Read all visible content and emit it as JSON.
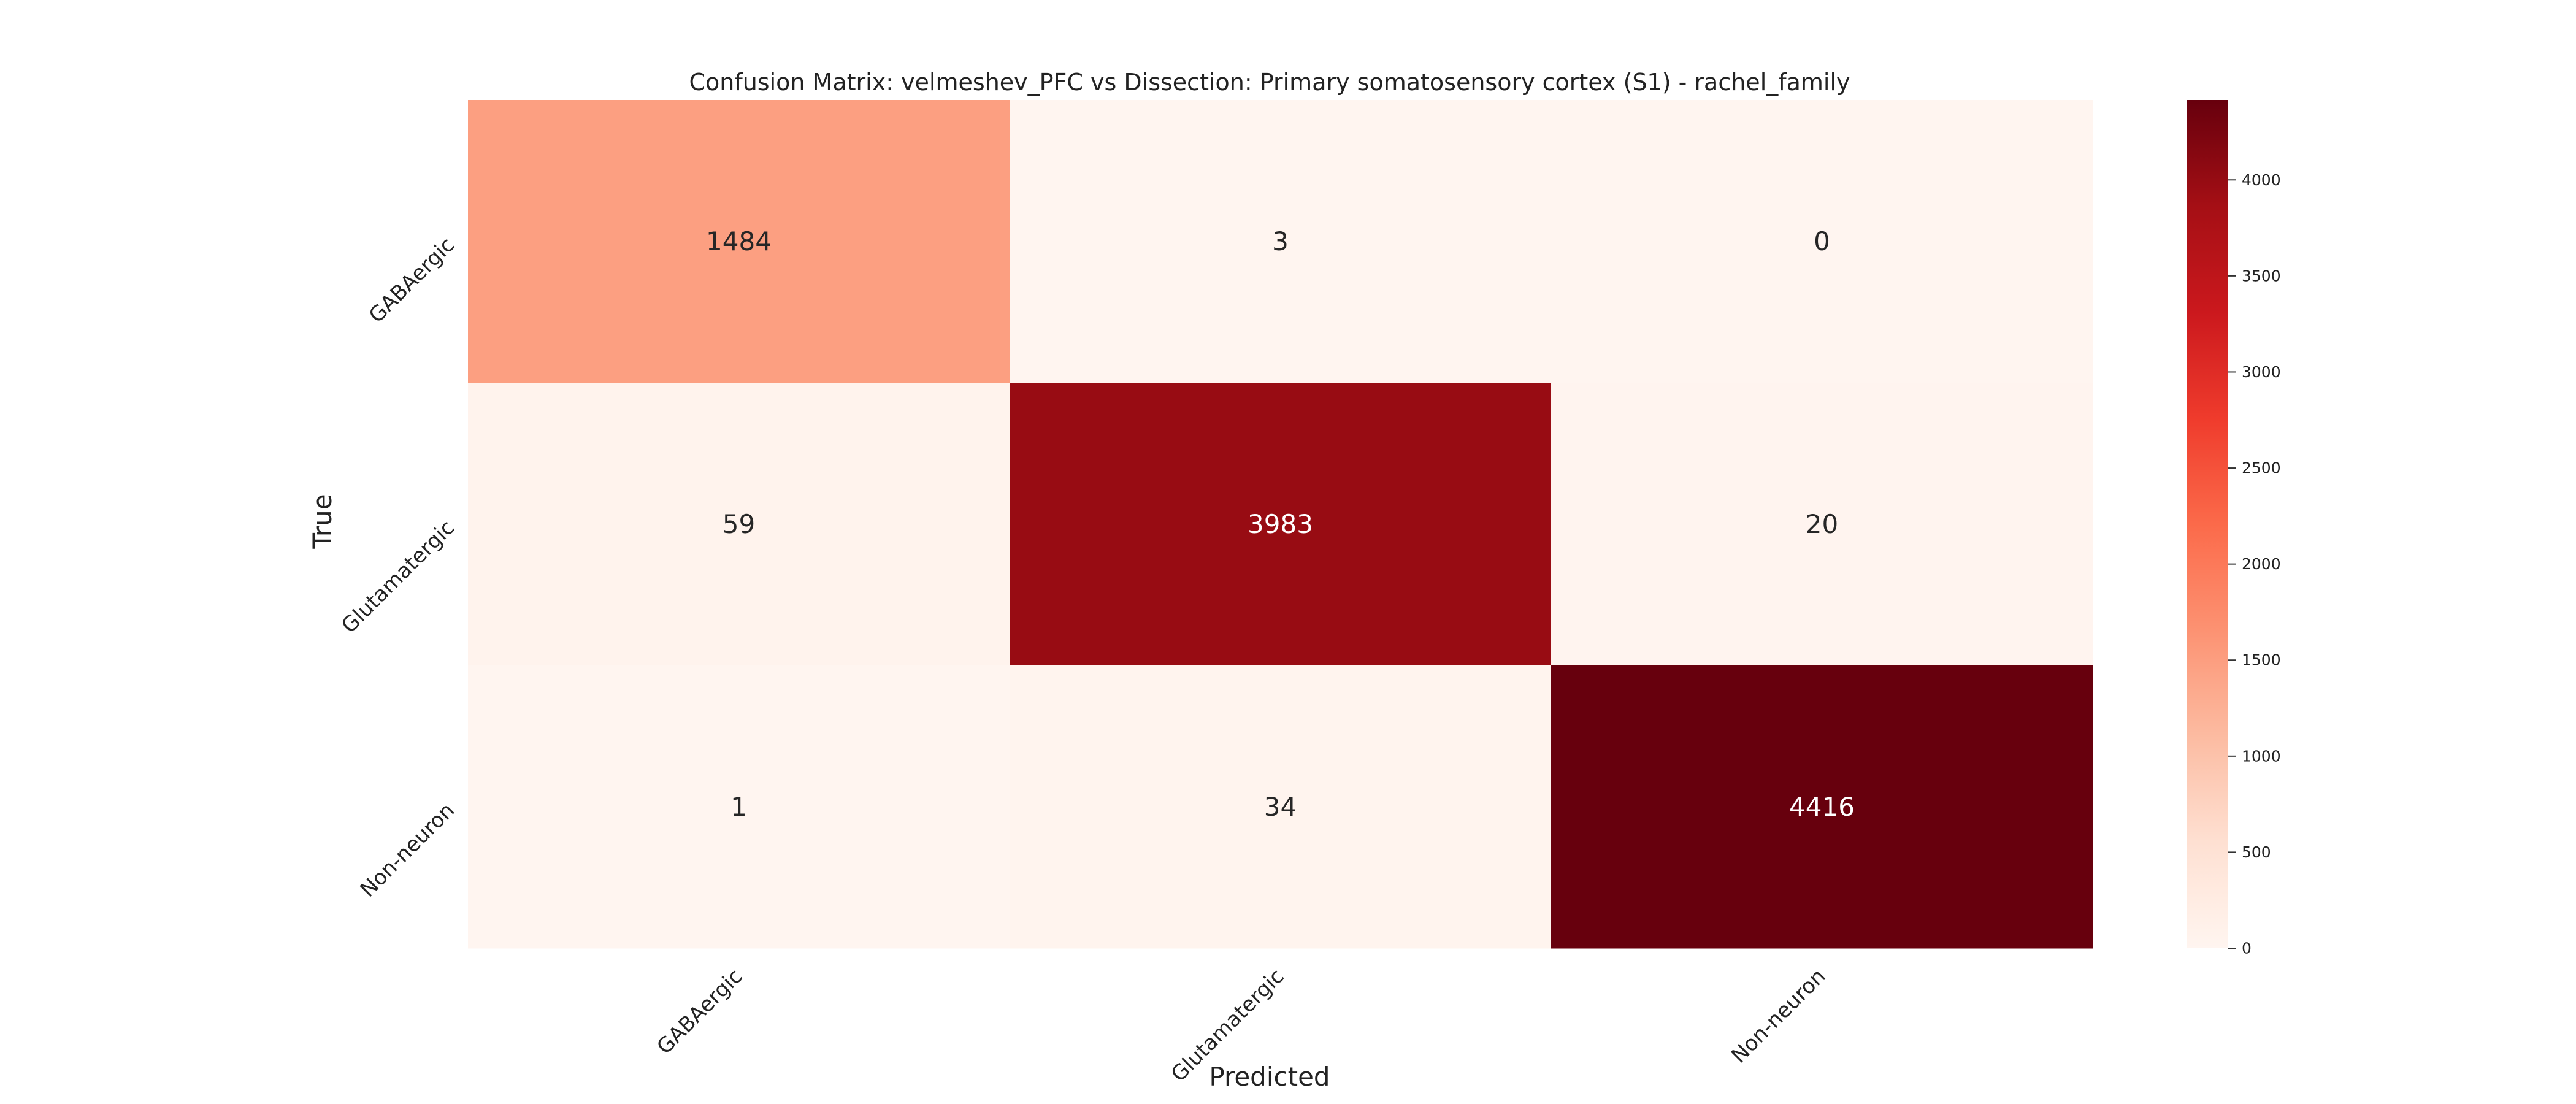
{
  "chart_data": {
    "type": "heatmap",
    "title": "Confusion Matrix: velmeshev_PFC vs Dissection: Primary somatosensory cortex (S1) - rachel_family",
    "xlabel": "Predicted",
    "ylabel": "True",
    "x_categories": [
      "GABAergic",
      "Glutamatergic",
      "Non-neuron"
    ],
    "y_categories": [
      "GABAergic",
      "Glutamatergic",
      "Non-neuron"
    ],
    "values": [
      [
        1484,
        3,
        0
      ],
      [
        59,
        3983,
        20
      ],
      [
        1,
        34,
        4416
      ]
    ],
    "colormap": "Reds",
    "colorbar": {
      "min": 0,
      "max": 4416,
      "ticks": [
        0,
        500,
        1000,
        1500,
        2000,
        2500,
        3000,
        3500,
        4000
      ]
    }
  }
}
